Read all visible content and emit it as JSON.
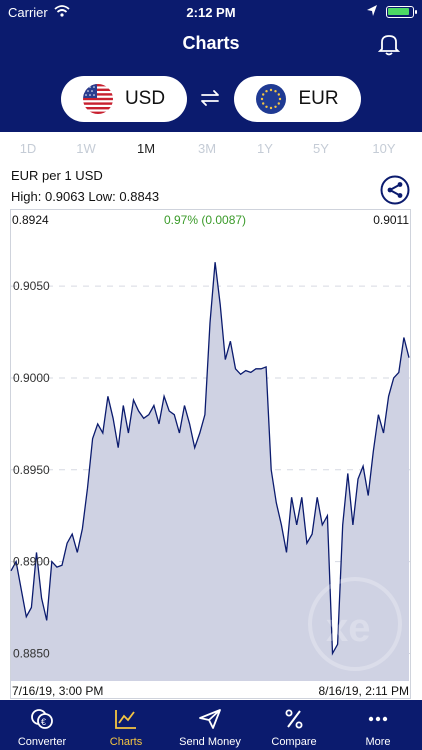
{
  "status": {
    "carrier": "Carrier",
    "time": "2:12 PM"
  },
  "header": {
    "title": "Charts"
  },
  "from_currency": {
    "code": "USD"
  },
  "to_currency": {
    "code": "EUR"
  },
  "ranges": [
    {
      "label": "1D"
    },
    {
      "label": "1W"
    },
    {
      "label": "1M",
      "active": true
    },
    {
      "label": "3M"
    },
    {
      "label": "1Y"
    },
    {
      "label": "5Y"
    },
    {
      "label": "10Y"
    }
  ],
  "pair_label": "EUR per 1 USD",
  "high_low": "High: 0.9063  Low: 0.8843",
  "chart_header": {
    "open": "0.8924",
    "change": "0.97% (0.0087)",
    "close": "0.9011"
  },
  "chart_data": {
    "type": "area",
    "x_start": "7/16/19, 3:00 PM",
    "x_end": "8/16/19, 2:11 PM",
    "y_ticks": [
      "0.9050",
      "0.9000",
      "0.8950",
      "0.8900",
      "0.8850"
    ],
    "ylim": [
      0.8835,
      0.908
    ],
    "values": [
      0.8895,
      0.89,
      0.8885,
      0.887,
      0.8875,
      0.8905,
      0.888,
      0.8868,
      0.89,
      0.8897,
      0.8898,
      0.891,
      0.8915,
      0.8905,
      0.8918,
      0.894,
      0.8967,
      0.8975,
      0.897,
      0.899,
      0.8978,
      0.8962,
      0.8985,
      0.897,
      0.8988,
      0.8982,
      0.8978,
      0.898,
      0.8985,
      0.8975,
      0.899,
      0.8982,
      0.898,
      0.897,
      0.8985,
      0.8975,
      0.8962,
      0.897,
      0.898,
      0.903,
      0.9063,
      0.904,
      0.901,
      0.902,
      0.9005,
      0.9002,
      0.9004,
      0.9003,
      0.9005,
      0.9005,
      0.9006,
      0.895,
      0.8932,
      0.892,
      0.8905,
      0.8935,
      0.892,
      0.8935,
      0.891,
      0.8915,
      0.8935,
      0.892,
      0.8925,
      0.885,
      0.8855,
      0.892,
      0.8948,
      0.892,
      0.8945,
      0.8952,
      0.8936,
      0.896,
      0.898,
      0.897,
      0.899,
      0.9,
      0.9003,
      0.9022,
      0.9011
    ],
    "colors": {
      "line": "#0b1b6e",
      "fill": "#cfd2e3"
    }
  },
  "tabbar": [
    {
      "label": "Converter",
      "icon": "converter-icon"
    },
    {
      "label": "Charts",
      "icon": "charts-icon",
      "active": true
    },
    {
      "label": "Send Money",
      "icon": "send-icon"
    },
    {
      "label": "Compare",
      "icon": "percent-icon"
    },
    {
      "label": "More",
      "icon": "more-icon"
    }
  ]
}
